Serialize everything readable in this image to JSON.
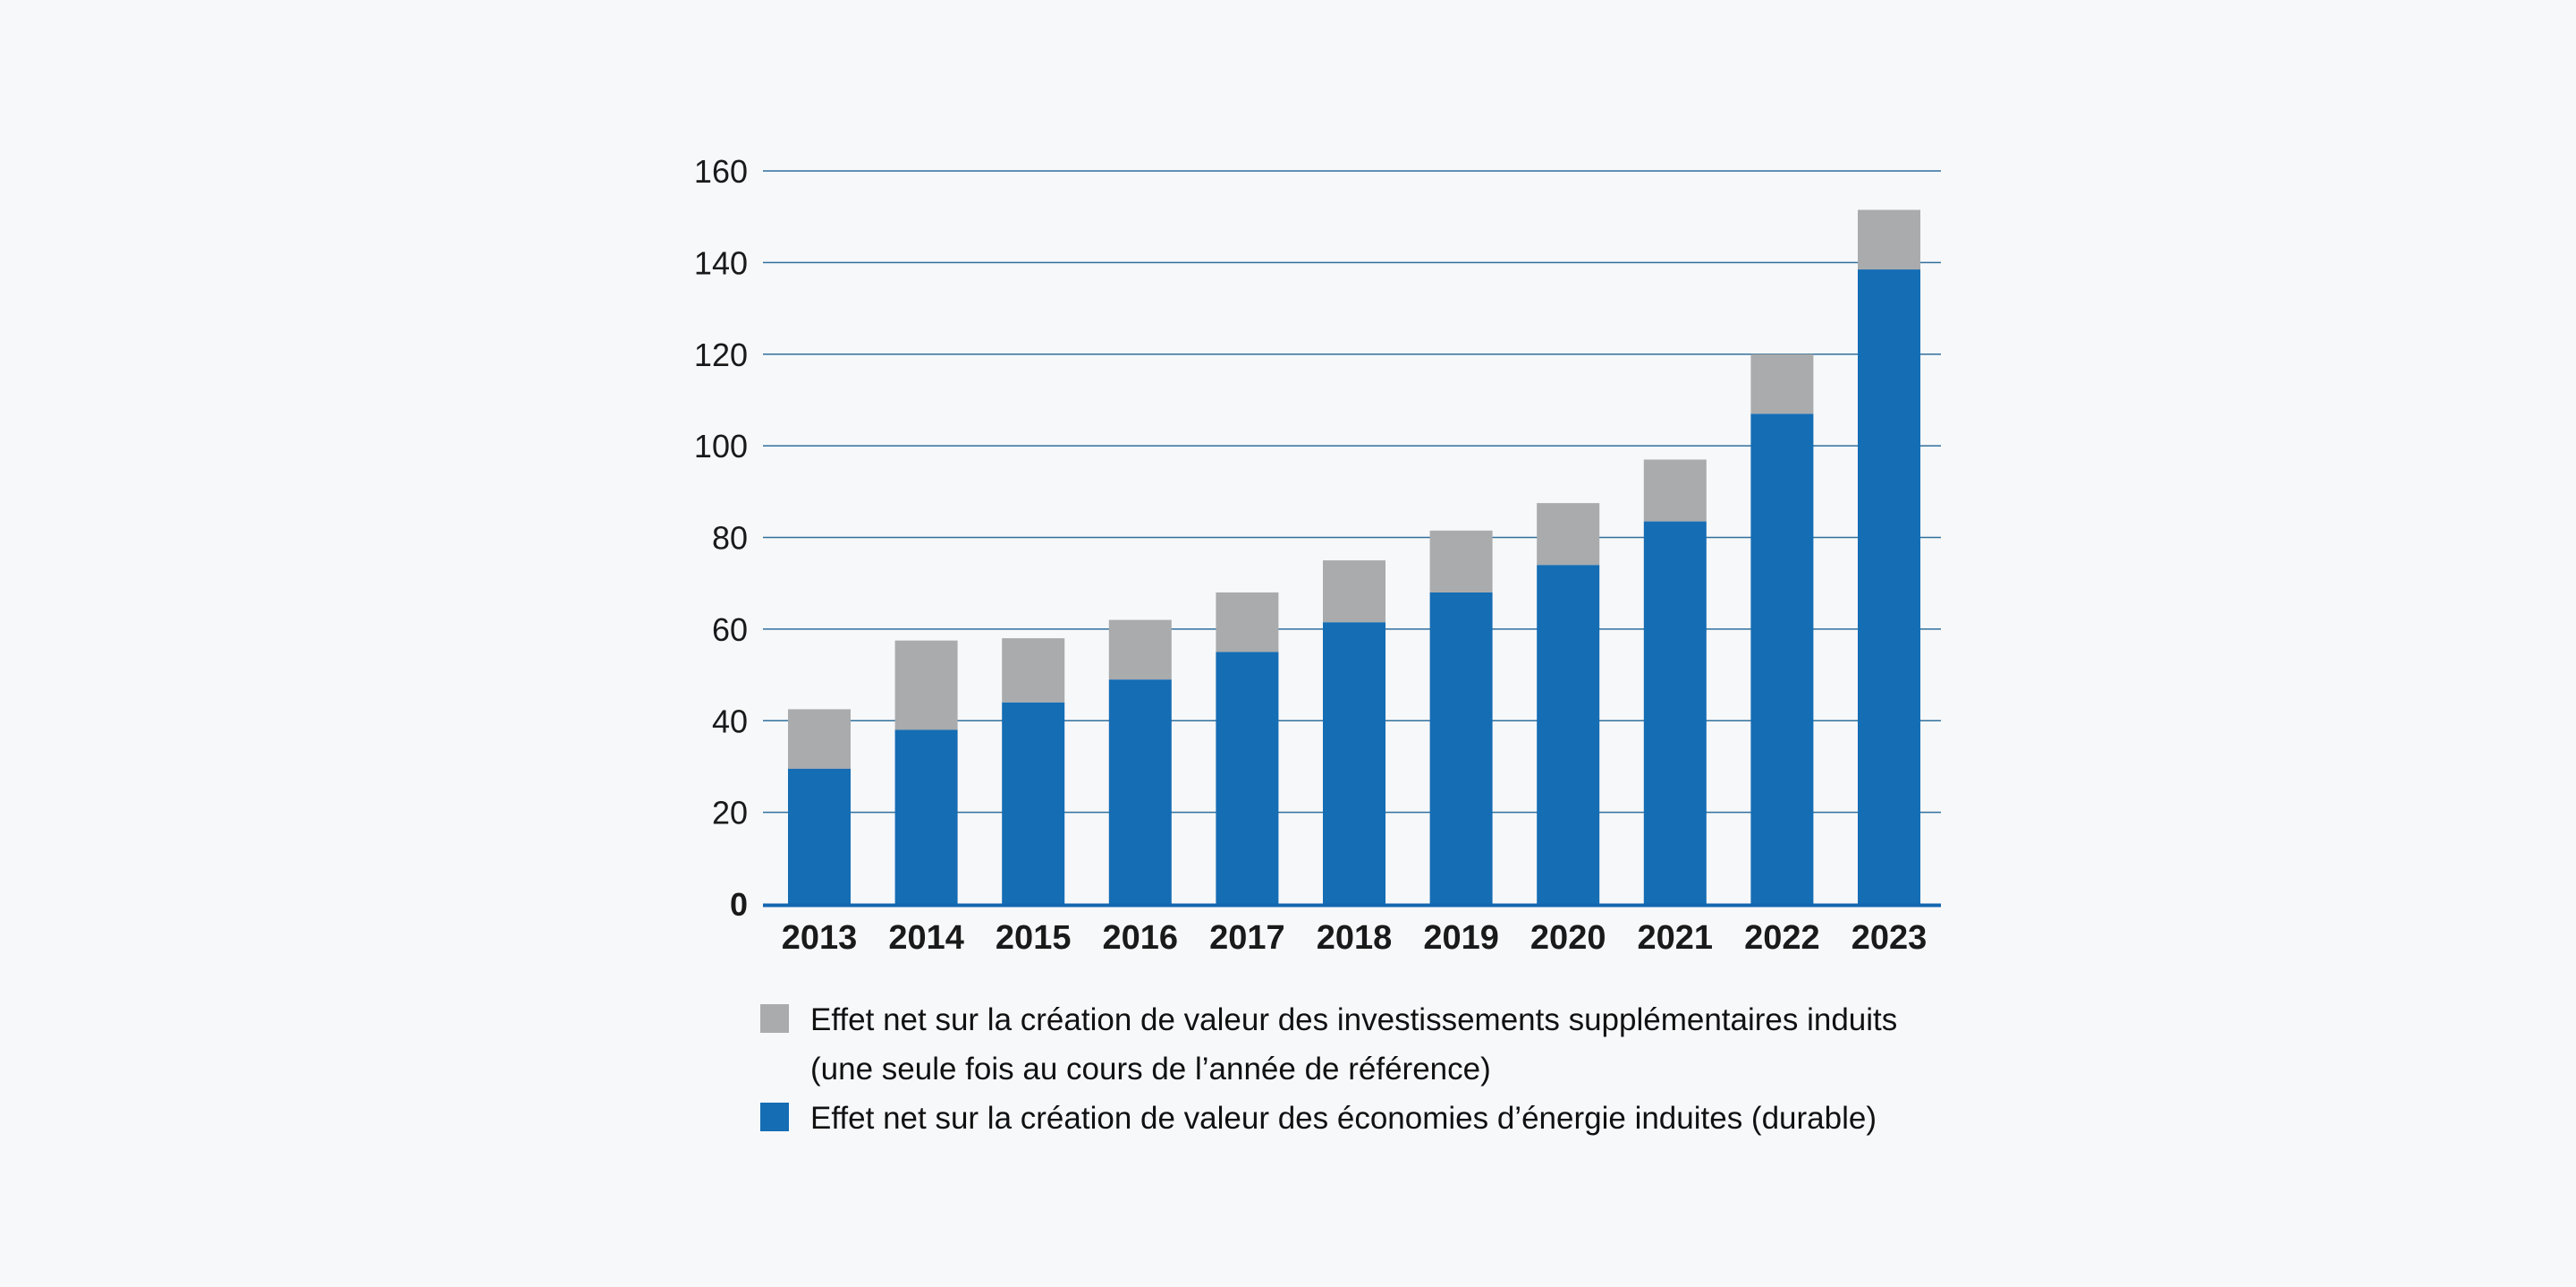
{
  "colors": {
    "background": "#f7f8fa",
    "grid": "#2f6f9c",
    "axis": "#1466b0",
    "durable": "#156db4",
    "one_time": "#a9abad"
  },
  "legend": {
    "one_time_line1": "Effet net sur la création de valeur des investissements supplémentaires induits",
    "one_time_line2": "(une seule fois au cours de l’année de référence)",
    "durable": "Effet net sur la création de valeur des économies d’énergie induites (durable)"
  },
  "chart_data": {
    "type": "bar",
    "stacked": true,
    "categories": [
      "2013",
      "2014",
      "2015",
      "2016",
      "2017",
      "2018",
      "2019",
      "2020",
      "2021",
      "2022",
      "2023"
    ],
    "series": [
      {
        "name": "Effet net sur la création de valeur des économies d’énergie induites (durable)",
        "color": "#156db4",
        "values": [
          29.5,
          38,
          44,
          49,
          55,
          61.5,
          68,
          74,
          83.5,
          107,
          138.5
        ]
      },
      {
        "name": "Effet net sur la création de valeur des investissements supplémentaires induits (une seule fois au cours de l’année de référence)",
        "color": "#a9abad",
        "values": [
          13,
          19.5,
          14,
          13,
          13,
          13.5,
          13.5,
          13.5,
          13.5,
          13,
          13
        ]
      }
    ],
    "yticks": [
      0,
      20,
      40,
      60,
      80,
      100,
      120,
      140,
      160
    ],
    "ytick_labels": [
      "0",
      "20",
      "40",
      "60",
      "80",
      "100",
      "120",
      "140",
      "160"
    ],
    "ylim": [
      0,
      160
    ],
    "grid": true,
    "legend_position": "bottom",
    "title": "",
    "xlabel": "",
    "ylabel": ""
  }
}
